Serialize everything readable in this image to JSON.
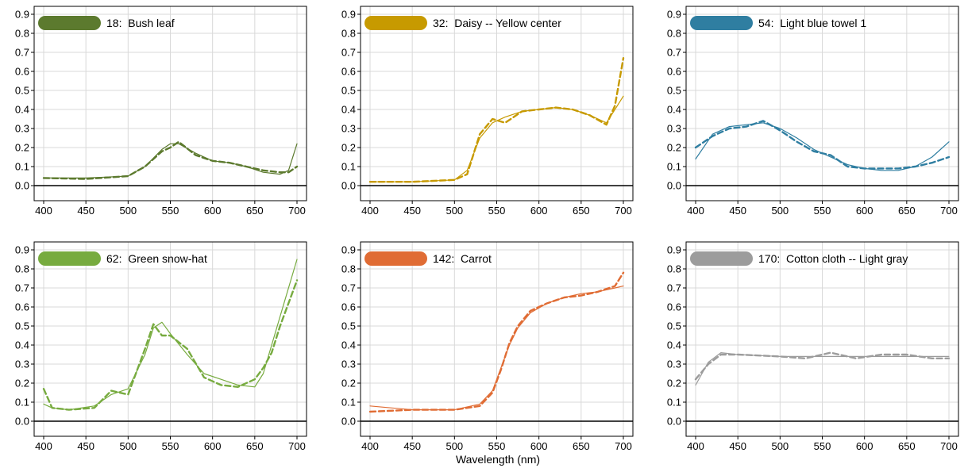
{
  "xlabel": "Wavelength (nm)",
  "chart_data": [
    {
      "type": "line",
      "legend": "18:  Bush leaf",
      "color": "#5c7a2e",
      "xlim": [
        400,
        700
      ],
      "ylim": [
        0,
        0.9
      ],
      "x_ticks": [
        400,
        450,
        500,
        550,
        600,
        650,
        700
      ],
      "y_ticks": [
        0.0,
        0.1,
        0.2,
        0.3,
        0.4,
        0.5,
        0.6,
        0.7,
        0.8,
        0.9
      ],
      "series": [
        {
          "style": "solid",
          "x": [
            400,
            450,
            500,
            520,
            540,
            550,
            560,
            580,
            600,
            620,
            640,
            660,
            680,
            690,
            700
          ],
          "y": [
            0.04,
            0.04,
            0.05,
            0.1,
            0.19,
            0.22,
            0.22,
            0.17,
            0.13,
            0.12,
            0.1,
            0.07,
            0.06,
            0.08,
            0.22
          ]
        },
        {
          "style": "dashed",
          "x": [
            400,
            450,
            500,
            520,
            540,
            550,
            560,
            580,
            600,
            620,
            640,
            660,
            680,
            690,
            700
          ],
          "y": [
            0.04,
            0.035,
            0.05,
            0.1,
            0.18,
            0.2,
            0.23,
            0.16,
            0.13,
            0.12,
            0.1,
            0.08,
            0.07,
            0.07,
            0.1
          ]
        }
      ]
    },
    {
      "type": "line",
      "legend": "32:  Daisy -- Yellow center",
      "color": "#c79a00",
      "xlim": [
        400,
        700
      ],
      "ylim": [
        0,
        0.9
      ],
      "x_ticks": [
        400,
        450,
        500,
        550,
        600,
        650,
        700
      ],
      "y_ticks": [
        0.0,
        0.1,
        0.2,
        0.3,
        0.4,
        0.5,
        0.6,
        0.7,
        0.8,
        0.9
      ],
      "series": [
        {
          "style": "solid",
          "x": [
            400,
            450,
            500,
            515,
            530,
            545,
            560,
            580,
            600,
            620,
            640,
            660,
            680,
            690,
            700
          ],
          "y": [
            0.02,
            0.02,
            0.03,
            0.08,
            0.25,
            0.33,
            0.36,
            0.39,
            0.4,
            0.41,
            0.4,
            0.37,
            0.33,
            0.4,
            0.47
          ]
        },
        {
          "style": "dashed",
          "x": [
            400,
            450,
            500,
            515,
            530,
            545,
            560,
            580,
            600,
            620,
            640,
            660,
            680,
            690,
            700
          ],
          "y": [
            0.02,
            0.02,
            0.03,
            0.06,
            0.27,
            0.35,
            0.33,
            0.39,
            0.4,
            0.41,
            0.4,
            0.37,
            0.32,
            0.42,
            0.67
          ]
        }
      ]
    },
    {
      "type": "line",
      "legend": "54:  Light blue towel 1",
      "color": "#2f7ea1",
      "xlim": [
        400,
        700
      ],
      "ylim": [
        0,
        0.9
      ],
      "x_ticks": [
        400,
        450,
        500,
        550,
        600,
        650,
        700
      ],
      "y_ticks": [
        0.0,
        0.1,
        0.2,
        0.3,
        0.4,
        0.5,
        0.6,
        0.7,
        0.8,
        0.9
      ],
      "series": [
        {
          "style": "solid",
          "x": [
            400,
            420,
            440,
            460,
            480,
            500,
            520,
            540,
            560,
            580,
            600,
            620,
            640,
            660,
            680,
            700
          ],
          "y": [
            0.14,
            0.27,
            0.31,
            0.32,
            0.33,
            0.3,
            0.25,
            0.19,
            0.15,
            0.11,
            0.09,
            0.08,
            0.08,
            0.1,
            0.15,
            0.23
          ]
        },
        {
          "style": "dashed",
          "x": [
            400,
            420,
            440,
            460,
            480,
            500,
            520,
            540,
            560,
            580,
            600,
            620,
            640,
            660,
            680,
            700
          ],
          "y": [
            0.2,
            0.26,
            0.3,
            0.31,
            0.34,
            0.29,
            0.23,
            0.18,
            0.16,
            0.1,
            0.09,
            0.09,
            0.09,
            0.1,
            0.12,
            0.15
          ]
        }
      ]
    },
    {
      "type": "line",
      "legend": "62:  Green snow-hat",
      "color": "#77ab3f",
      "xlim": [
        400,
        700
      ],
      "ylim": [
        0,
        0.9
      ],
      "x_ticks": [
        400,
        450,
        500,
        550,
        600,
        650,
        700
      ],
      "y_ticks": [
        0.0,
        0.1,
        0.2,
        0.3,
        0.4,
        0.5,
        0.6,
        0.7,
        0.8,
        0.9
      ],
      "series": [
        {
          "style": "solid",
          "x": [
            400,
            410,
            430,
            460,
            480,
            500,
            520,
            530,
            540,
            550,
            570,
            590,
            610,
            630,
            650,
            660,
            670,
            680,
            700
          ],
          "y": [
            0.09,
            0.07,
            0.06,
            0.08,
            0.14,
            0.17,
            0.35,
            0.49,
            0.52,
            0.46,
            0.35,
            0.25,
            0.22,
            0.19,
            0.18,
            0.25,
            0.4,
            0.55,
            0.85
          ]
        },
        {
          "style": "dashed",
          "x": [
            400,
            410,
            430,
            460,
            480,
            500,
            520,
            530,
            540,
            550,
            570,
            590,
            610,
            630,
            650,
            660,
            670,
            680,
            700
          ],
          "y": [
            0.17,
            0.07,
            0.06,
            0.07,
            0.16,
            0.14,
            0.38,
            0.51,
            0.45,
            0.45,
            0.38,
            0.23,
            0.19,
            0.18,
            0.22,
            0.28,
            0.36,
            0.5,
            0.74
          ]
        }
      ]
    },
    {
      "type": "line",
      "legend": "142:  Carrot",
      "color": "#e06c34",
      "xlim": [
        400,
        700
      ],
      "ylim": [
        0,
        0.9
      ],
      "x_ticks": [
        400,
        450,
        500,
        550,
        600,
        650,
        700
      ],
      "y_ticks": [
        0.0,
        0.1,
        0.2,
        0.3,
        0.4,
        0.5,
        0.6,
        0.7,
        0.8,
        0.9
      ],
      "series": [
        {
          "style": "solid",
          "x": [
            400,
            450,
            500,
            530,
            545,
            555,
            565,
            575,
            590,
            610,
            630,
            650,
            670,
            690,
            700
          ],
          "y": [
            0.08,
            0.06,
            0.06,
            0.09,
            0.16,
            0.28,
            0.4,
            0.49,
            0.57,
            0.62,
            0.65,
            0.67,
            0.68,
            0.7,
            0.71
          ]
        },
        {
          "style": "dashed",
          "x": [
            400,
            450,
            500,
            530,
            545,
            555,
            565,
            575,
            590,
            610,
            630,
            650,
            670,
            690,
            700
          ],
          "y": [
            0.05,
            0.06,
            0.06,
            0.08,
            0.15,
            0.27,
            0.41,
            0.5,
            0.58,
            0.62,
            0.65,
            0.66,
            0.68,
            0.71,
            0.78
          ]
        }
      ]
    },
    {
      "type": "line",
      "legend": "170:  Cotton cloth -- Light gray",
      "color": "#9c9c9c",
      "xlim": [
        400,
        700
      ],
      "ylim": [
        0,
        0.9
      ],
      "x_ticks": [
        400,
        450,
        500,
        550,
        600,
        650,
        700
      ],
      "y_ticks": [
        0.0,
        0.1,
        0.2,
        0.3,
        0.4,
        0.5,
        0.6,
        0.7,
        0.8,
        0.9
      ],
      "series": [
        {
          "style": "solid",
          "x": [
            400,
            415,
            430,
            450,
            500,
            550,
            600,
            650,
            700
          ],
          "y": [
            0.19,
            0.31,
            0.36,
            0.35,
            0.34,
            0.34,
            0.34,
            0.34,
            0.34
          ]
        },
        {
          "style": "dashed",
          "x": [
            400,
            415,
            430,
            450,
            500,
            530,
            560,
            590,
            620,
            650,
            680,
            700
          ],
          "y": [
            0.22,
            0.3,
            0.35,
            0.35,
            0.34,
            0.33,
            0.36,
            0.33,
            0.35,
            0.35,
            0.33,
            0.33
          ]
        }
      ]
    }
  ]
}
